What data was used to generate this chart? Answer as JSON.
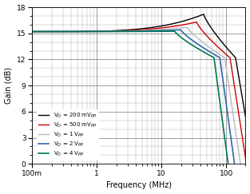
{
  "title": "",
  "xlabel": "Frequency (MHz)",
  "ylabel": "Gain (dB)",
  "ylim": [
    0,
    18
  ],
  "yticks": [
    0,
    3,
    6,
    9,
    12,
    15,
    18
  ],
  "background_color": "#ffffff",
  "series": [
    {
      "label": "V$_O$ = 200 mV$_{PP}$",
      "color": "#000000",
      "lw": 1.0,
      "flat_gain": 15.2,
      "peak_freq": 45,
      "peak_gain": 17.2,
      "f3db": 140,
      "rolloff_n": 2.2
    },
    {
      "label": "V$_O$ = 500 mV$_{PP}$",
      "color": "#cc0000",
      "lw": 1.0,
      "flat_gain": 15.2,
      "peak_freq": 35,
      "peak_gain": 16.3,
      "f3db": 115,
      "rolloff_n": 2.4
    },
    {
      "label": "V$_O$ = 1 V$_{PP}$",
      "color": "#bbbbbb",
      "lw": 1.0,
      "flat_gain": 15.2,
      "peak_freq": 25,
      "peak_gain": 15.7,
      "f3db": 95,
      "rolloff_n": 2.5
    },
    {
      "label": "V$_O$ = 2 V$_{PP}$",
      "color": "#3366aa",
      "lw": 1.2,
      "flat_gain": 15.2,
      "peak_freq": 20,
      "peak_gain": 15.4,
      "f3db": 80,
      "rolloff_n": 2.7
    },
    {
      "label": "V$_O$ = 4 V$_{PP}$",
      "color": "#007755",
      "lw": 1.2,
      "flat_gain": 15.2,
      "peak_freq": 16,
      "peak_gain": 15.25,
      "f3db": 65,
      "rolloff_n": 2.8
    }
  ]
}
